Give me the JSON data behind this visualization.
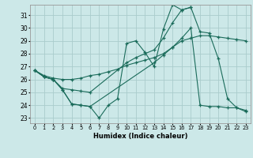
{
  "bg_color": "#cce8e8",
  "grid_color": "#aacccc",
  "line_color": "#1a6b5a",
  "xlabel": "Humidex (Indice chaleur)",
  "ylabel_ticks": [
    23,
    24,
    25,
    26,
    27,
    28,
    29,
    30,
    31
  ],
  "xlim": [
    -0.5,
    23.5
  ],
  "ylim": [
    22.6,
    31.8
  ],
  "line1_x": [
    0,
    1,
    2,
    3,
    4,
    5,
    6,
    7,
    8,
    9,
    10,
    11,
    12,
    13,
    14,
    15,
    16,
    17
  ],
  "line1_y": [
    26.7,
    26.2,
    26.0,
    25.2,
    24.1,
    24.0,
    23.9,
    23.0,
    24.0,
    24.5,
    28.8,
    29.0,
    28.1,
    27.0,
    29.9,
    31.8,
    31.4,
    31.6
  ],
  "line2_x": [
    0,
    1,
    2,
    3,
    4,
    5,
    6,
    7,
    8,
    9,
    10,
    11,
    12,
    13,
    14,
    15,
    16,
    17,
    18,
    19,
    20,
    21,
    22,
    23
  ],
  "line2_y": [
    26.7,
    26.3,
    26.1,
    26.0,
    26.0,
    26.1,
    26.3,
    26.4,
    26.6,
    26.8,
    27.1,
    27.3,
    27.5,
    27.7,
    28.0,
    28.5,
    29.0,
    29.2,
    29.4,
    29.4,
    29.3,
    29.2,
    29.1,
    29.0
  ],
  "line3_x": [
    0,
    1,
    2,
    3,
    4,
    5,
    6,
    10,
    11,
    12,
    13,
    14,
    15,
    16,
    17,
    18,
    19,
    20,
    21,
    22,
    23
  ],
  "line3_y": [
    26.7,
    26.2,
    26.0,
    25.3,
    25.2,
    25.1,
    25.0,
    27.3,
    27.7,
    28.0,
    28.3,
    29.2,
    30.4,
    31.4,
    31.6,
    29.7,
    29.6,
    27.6,
    24.5,
    23.8,
    23.5
  ],
  "line4_x": [
    0,
    1,
    2,
    3,
    4,
    5,
    6,
    13,
    14,
    15,
    16,
    17,
    18,
    19,
    20,
    21,
    22,
    23
  ],
  "line4_y": [
    26.7,
    26.2,
    26.0,
    25.2,
    24.1,
    24.0,
    23.9,
    27.3,
    27.9,
    28.5,
    29.2,
    30.0,
    24.0,
    23.9,
    23.9,
    23.8,
    23.8,
    23.6
  ]
}
